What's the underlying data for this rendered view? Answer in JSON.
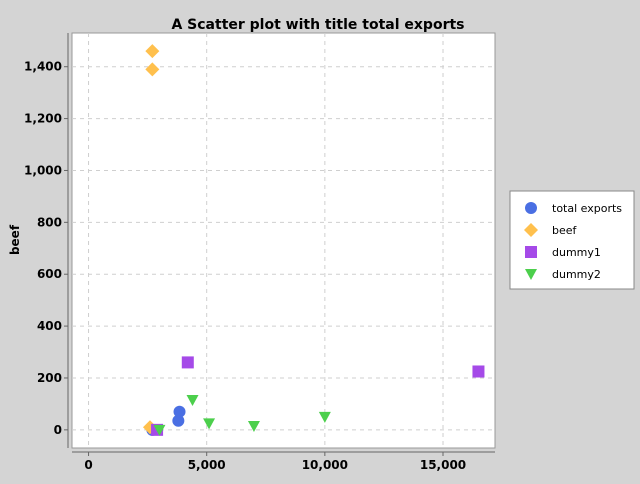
{
  "chart_data": {
    "type": "scatter",
    "title": "A Scatter plot with title total exports",
    "xlabel": "",
    "ylabel": "beef",
    "xlim": [
      -700,
      17200
    ],
    "ylim": [
      -70,
      1530
    ],
    "x_ticks": [
      0,
      5000,
      10000,
      15000
    ],
    "x_tick_labels": [
      "0",
      "5,000",
      "10,000",
      "15,000"
    ],
    "y_ticks": [
      0,
      200,
      400,
      600,
      800,
      1000,
      1200,
      1400
    ],
    "y_tick_labels": [
      "0",
      "200",
      "400",
      "600",
      "800",
      "1,000",
      "1,200",
      "1,400"
    ],
    "grid": true,
    "legend_position": "right",
    "series": [
      {
        "name": "total exports",
        "marker": "circle",
        "color": "#4a6fe3",
        "points": [
          [
            2700,
            0
          ],
          [
            3800,
            35
          ],
          [
            3850,
            70
          ]
        ]
      },
      {
        "name": "beef",
        "marker": "diamond",
        "color": "#ffc04d",
        "points": [
          [
            2700,
            1460
          ],
          [
            2700,
            1390
          ],
          [
            2600,
            10
          ]
        ]
      },
      {
        "name": "dummy1",
        "marker": "square",
        "color": "#a54ae8",
        "points": [
          [
            4200,
            260
          ],
          [
            16500,
            225
          ],
          [
            2900,
            0
          ]
        ]
      },
      {
        "name": "dummy2",
        "marker": "triangle-down",
        "color": "#4ccf4c",
        "points": [
          [
            4400,
            115
          ],
          [
            5100,
            25
          ],
          [
            7000,
            15
          ],
          [
            10000,
            50
          ],
          [
            3000,
            0
          ]
        ]
      }
    ]
  }
}
